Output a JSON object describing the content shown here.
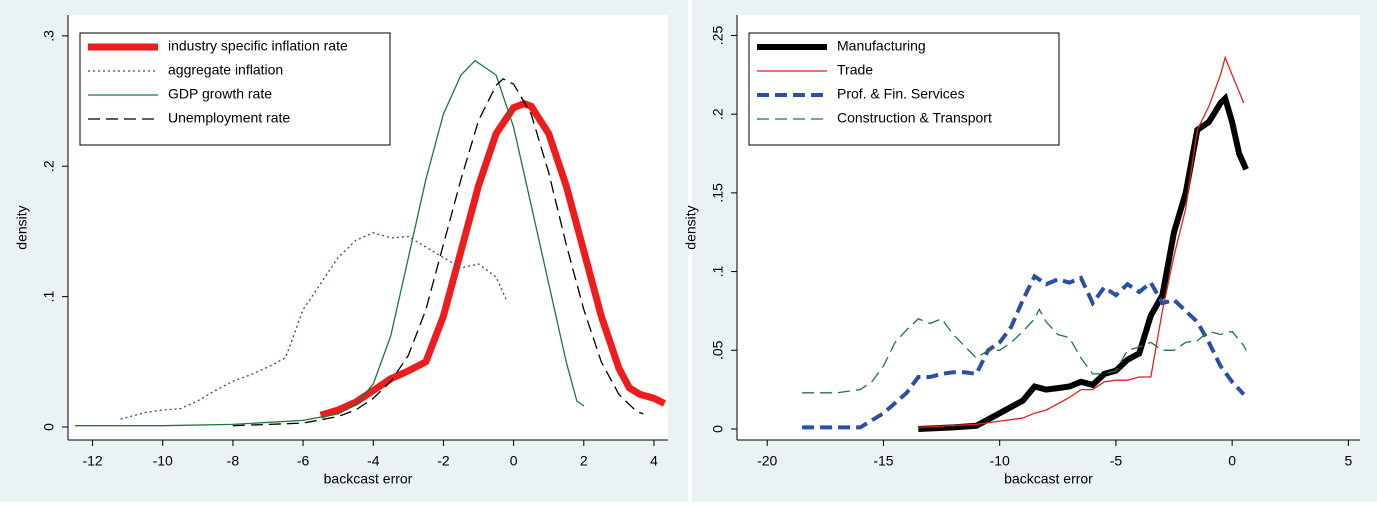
{
  "chart_data": [
    {
      "type": "line",
      "xlabel": "backcast error",
      "ylabel": "density",
      "xlim": [
        -12.7,
        4.4
      ],
      "ylim": [
        -0.01,
        0.316
      ],
      "xticks": [
        -12,
        -10,
        -8,
        -6,
        -4,
        -2,
        0,
        2,
        4
      ],
      "yticks": [
        0,
        {
          "value": 0.1,
          "label": ".1"
        },
        {
          "value": 0.2,
          "label": ".2"
        },
        {
          "value": 0.3,
          "label": ".3"
        }
      ],
      "legend": "top-left",
      "series": [
        {
          "name": "industry specific inflation rate",
          "color": "#ee1c1c",
          "width": 7,
          "style": "solid",
          "x": [
            -5.5,
            -5,
            -4.5,
            -4,
            -3.5,
            -3,
            -2.5,
            -2,
            -1.5,
            -1,
            -0.5,
            0,
            0.3,
            0.5,
            1,
            1.5,
            2,
            2.5,
            3,
            3.3,
            3.6,
            4,
            4.3
          ],
          "values": [
            0.009,
            0.013,
            0.019,
            0.028,
            0.037,
            0.043,
            0.05,
            0.085,
            0.135,
            0.185,
            0.225,
            0.245,
            0.248,
            0.246,
            0.225,
            0.185,
            0.135,
            0.085,
            0.045,
            0.03,
            0.025,
            0.022,
            0.018
          ]
        },
        {
          "name": "aggregate inflation",
          "color": "#1f4e9e",
          "width": 1.3,
          "style": "dotted",
          "x": [
            -11.2,
            -10.5,
            -10,
            -9.5,
            -9,
            -8.5,
            -8,
            -7.5,
            -7,
            -6.5,
            -6,
            -5.5,
            -5,
            -4.5,
            -4,
            -3.5,
            -3,
            -2.5,
            -2,
            -1.5,
            -1,
            -0.5,
            -0.2
          ],
          "values": [
            0.006,
            0.011,
            0.013,
            0.014,
            0.02,
            0.028,
            0.035,
            0.04,
            0.046,
            0.053,
            0.09,
            0.11,
            0.13,
            0.143,
            0.149,
            0.145,
            0.146,
            0.138,
            0.13,
            0.122,
            0.125,
            0.115,
            0.097
          ]
        },
        {
          "name": "GDP growth rate",
          "color": "#1a7a3a",
          "width": 1.3,
          "style": "solid",
          "x": [
            -12.5,
            -10,
            -8,
            -6,
            -5,
            -4.5,
            -4,
            -3.5,
            -3,
            -2.5,
            -2,
            -1.5,
            -1.1,
            -0.5,
            0,
            0.5,
            1,
            1.5,
            1.8,
            2
          ],
          "values": [
            0.001,
            0.001,
            0.002,
            0.005,
            0.01,
            0.017,
            0.033,
            0.07,
            0.13,
            0.19,
            0.24,
            0.27,
            0.281,
            0.27,
            0.23,
            0.17,
            0.11,
            0.05,
            0.02,
            0.016
          ]
        },
        {
          "name": "Unemployment rate",
          "color": "#000000",
          "width": 1.3,
          "style": "dashed",
          "x": [
            -8,
            -6,
            -5,
            -4.5,
            -4,
            -3.5,
            -3,
            -2.5,
            -2,
            -1.5,
            -1,
            -0.5,
            -0.3,
            0,
            0.5,
            1,
            1.5,
            2,
            2.5,
            3,
            3.5,
            3.7
          ],
          "values": [
            0.001,
            0.003,
            0.008,
            0.013,
            0.022,
            0.035,
            0.055,
            0.09,
            0.14,
            0.19,
            0.235,
            0.262,
            0.267,
            0.263,
            0.24,
            0.195,
            0.14,
            0.09,
            0.05,
            0.025,
            0.012,
            0.01
          ]
        }
      ]
    },
    {
      "type": "line",
      "xlabel": "backcast error",
      "ylabel": "density",
      "xlim": [
        -21.3,
        5.5
      ],
      "ylim": [
        -0.007,
        0.263
      ],
      "xticks": [
        -20,
        -15,
        -10,
        -5,
        0,
        5
      ],
      "yticks": [
        0,
        {
          "value": 0.05,
          "label": ".05"
        },
        {
          "value": 0.1,
          "label": ".1"
        },
        {
          "value": 0.15,
          "label": ".15"
        },
        {
          "value": 0.2,
          "label": ".2"
        },
        {
          "value": 0.25,
          "label": ".25"
        }
      ],
      "legend": "top-left",
      "series": [
        {
          "name": "Manufacturing",
          "color": "#000000",
          "width": 6,
          "style": "solid",
          "x": [
            -13.5,
            -12,
            -11,
            -10,
            -9,
            -8.5,
            -8,
            -7.5,
            -7,
            -6.5,
            -6,
            -5.5,
            -5,
            -4.5,
            -4,
            -3.5,
            -3,
            -2.5,
            -2,
            -1.5,
            -1,
            -0.5,
            -0.3,
            0,
            0.3,
            0.6
          ],
          "values": [
            0,
            0.001,
            0.002,
            0.01,
            0.018,
            0.027,
            0.025,
            0.026,
            0.027,
            0.03,
            0.028,
            0.035,
            0.037,
            0.044,
            0.048,
            0.072,
            0.085,
            0.125,
            0.15,
            0.19,
            0.195,
            0.207,
            0.21,
            0.195,
            0.175,
            0.165
          ]
        },
        {
          "name": "Trade",
          "color": "#ee1c1c",
          "width": 1.3,
          "style": "solid",
          "x": [
            -13.5,
            -11,
            -10,
            -9,
            -8.5,
            -8,
            -7,
            -6.5,
            -6,
            -5.5,
            -5,
            -4.5,
            -4,
            -3.5,
            -3,
            -2.5,
            -2,
            -1.5,
            -1,
            -0.5,
            -0.3,
            0,
            0.5
          ],
          "values": [
            0.001,
            0.003,
            0.005,
            0.007,
            0.01,
            0.012,
            0.02,
            0.025,
            0.025,
            0.03,
            0.031,
            0.031,
            0.033,
            0.033,
            0.075,
            0.11,
            0.14,
            0.19,
            0.205,
            0.225,
            0.236,
            0.225,
            0.207
          ]
        },
        {
          "name": "Prof. & Fin. Services",
          "color": "#2a4fa8",
          "width": 4,
          "style": "dashed",
          "x": [
            -18.5,
            -16,
            -15,
            -14,
            -13.5,
            -13,
            -12.5,
            -12,
            -11.5,
            -11,
            -10.5,
            -10,
            -9.5,
            -9,
            -8.5,
            -8,
            -7.5,
            -7,
            -6.5,
            -6,
            -5.5,
            -5,
            -4.5,
            -4,
            -3.5,
            -3,
            -2.5,
            -2,
            -1.5,
            -1,
            -0.5,
            0,
            0.5
          ],
          "values": [
            0.001,
            0.001,
            0.01,
            0.023,
            0.033,
            0.033,
            0.035,
            0.036,
            0.036,
            0.035,
            0.05,
            0.055,
            0.065,
            0.082,
            0.097,
            0.092,
            0.095,
            0.093,
            0.096,
            0.08,
            0.09,
            0.085,
            0.092,
            0.087,
            0.093,
            0.08,
            0.082,
            0.075,
            0.068,
            0.055,
            0.04,
            0.03,
            0.022
          ]
        },
        {
          "name": "Construction & Transport",
          "color": "#1a7a3a",
          "width": 1.3,
          "style": "dashed",
          "x": [
            -18.5,
            -17,
            -16,
            -15.5,
            -15,
            -14.5,
            -14,
            -13.5,
            -13,
            -12.5,
            -12,
            -11,
            -10.5,
            -10,
            -9.5,
            -9,
            -8.5,
            -8.3,
            -8,
            -7.5,
            -7,
            -6.5,
            -6,
            -5.5,
            -5,
            -4.5,
            -4,
            -3.5,
            -3,
            -2.5,
            -2,
            -1.5,
            -1,
            -0.5,
            0,
            0.5,
            0.6
          ],
          "values": [
            0.023,
            0.023,
            0.025,
            0.03,
            0.04,
            0.055,
            0.063,
            0.07,
            0.067,
            0.07,
            0.06,
            0.045,
            0.05,
            0.05,
            0.055,
            0.062,
            0.07,
            0.076,
            0.068,
            0.06,
            0.058,
            0.045,
            0.035,
            0.035,
            0.037,
            0.05,
            0.052,
            0.055,
            0.05,
            0.05,
            0.055,
            0.056,
            0.062,
            0.06,
            0.062,
            0.053,
            0.05
          ]
        }
      ]
    }
  ]
}
